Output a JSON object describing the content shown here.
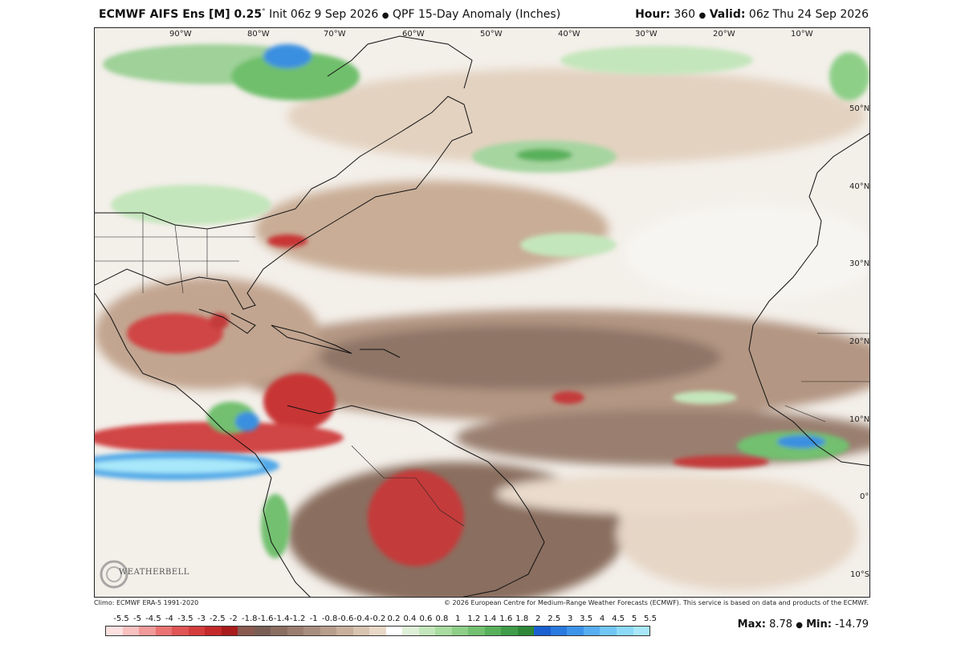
{
  "header": {
    "model": "ECMWF AIFS Ens [M] 0.25",
    "degree": "°",
    "init": "Init 06z 9 Sep 2026",
    "bullet": "●",
    "product": "QPF 15-Day Anomaly (Inches)",
    "hour_label": "Hour:",
    "hour_value": "360",
    "valid_label": "Valid:",
    "valid_value": "06z Thu 24 Sep 2026"
  },
  "map": {
    "lon_labels": [
      "90°W",
      "80°W",
      "70°W",
      "60°W",
      "50°W",
      "40°W",
      "30°W",
      "20°W",
      "10°W"
    ],
    "lat_labels": [
      "50°N",
      "40°N",
      "30°N",
      "20°N",
      "10°N",
      "0°",
      "10°S"
    ]
  },
  "logo": {
    "text": "WEATHERBELL"
  },
  "footer": {
    "climo": "Climo: ECMWF ERA-5 1991-2020",
    "copyright": "© 2026 European Centre for Medium-Range Weather Forecasts (ECMWF). This service is based on data and products of the ECMWF."
  },
  "colorbar": {
    "labels": [
      "-5.5",
      "-5",
      "-4.5",
      "-4",
      "-3.5",
      "-3",
      "-2.5",
      "-2",
      "-1.8",
      "-1.6",
      "-1.4",
      "-1.2",
      "-1",
      "-0.8",
      "-0.6",
      "-0.4",
      "-0.2",
      "0.2",
      "0.4",
      "0.6",
      "0.8",
      "1",
      "1.2",
      "1.4",
      "1.6",
      "1.8",
      "2",
      "2.5",
      "3",
      "3.5",
      "4",
      "4.5",
      "5",
      "5.5"
    ],
    "colors": [
      "#fde0e0",
      "#f9c0c0",
      "#f29a9a",
      "#ea7373",
      "#e05555",
      "#d43d3d",
      "#c42a2a",
      "#a81c1c",
      "#8a5a50",
      "#7a5e55",
      "#8a6e62",
      "#9a7e70",
      "#a88e7e",
      "#b89e8c",
      "#c8b09c",
      "#d8c4b0",
      "#e8d8c8",
      "#ffffff",
      "#dff0d8",
      "#c4e6bc",
      "#a8dca0",
      "#8ecf88",
      "#72c070",
      "#58b05a",
      "#409c48",
      "#2e8838",
      "#1a60d0",
      "#2a7ae0",
      "#3e94ea",
      "#58aef2",
      "#72c6f6",
      "#8cdaf8",
      "#a8e8fa"
    ]
  },
  "stats": {
    "max_label": "Max:",
    "max_value": "8.78",
    "min_label": "Min:",
    "min_value": "-14.79"
  }
}
